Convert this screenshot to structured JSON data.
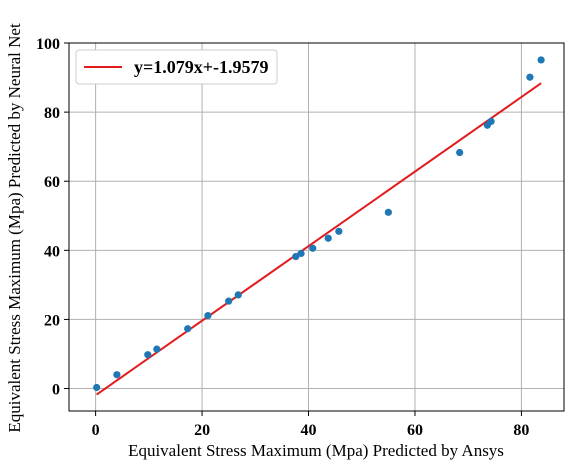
{
  "chart_data": {
    "type": "scatter",
    "xlabel": "Equivalent Stress Maximum (Mpa) Predicted by Ansys",
    "ylabel": "Equivalent Stress Maximum (Mpa) Predicted by Neural Net",
    "xlim": [
      -5,
      88
    ],
    "ylim": [
      -6.5,
      100
    ],
    "x_ticks": [
      0,
      20,
      40,
      60,
      80
    ],
    "y_ticks": [
      0,
      20,
      40,
      60,
      80,
      100
    ],
    "grid": true,
    "legend_position": "top-left",
    "point_color": "#1f77b4",
    "line_color": "#e31a1c",
    "points": [
      {
        "x": 0.2,
        "y": 0.3
      },
      {
        "x": 4.0,
        "y": 4.0
      },
      {
        "x": 9.8,
        "y": 9.8
      },
      {
        "x": 11.5,
        "y": 11.4
      },
      {
        "x": 17.3,
        "y": 17.3
      },
      {
        "x": 21.1,
        "y": 21.1
      },
      {
        "x": 25.0,
        "y": 25.3
      },
      {
        "x": 26.8,
        "y": 27.1
      },
      {
        "x": 37.6,
        "y": 38.2
      },
      {
        "x": 38.6,
        "y": 39.1
      },
      {
        "x": 40.8,
        "y": 40.6
      },
      {
        "x": 43.7,
        "y": 43.5
      },
      {
        "x": 45.7,
        "y": 45.5
      },
      {
        "x": 55.0,
        "y": 51.0
      },
      {
        "x": 68.4,
        "y": 68.3
      },
      {
        "x": 73.6,
        "y": 76.2
      },
      {
        "x": 74.3,
        "y": 77.3
      },
      {
        "x": 81.6,
        "y": 90.1
      },
      {
        "x": 83.7,
        "y": 95.1
      }
    ],
    "fit_line": {
      "label": "y=1.079x+-1.9579",
      "slope": 1.079,
      "intercept": -1.9579,
      "x_range": [
        0.2,
        83.7
      ]
    }
  }
}
